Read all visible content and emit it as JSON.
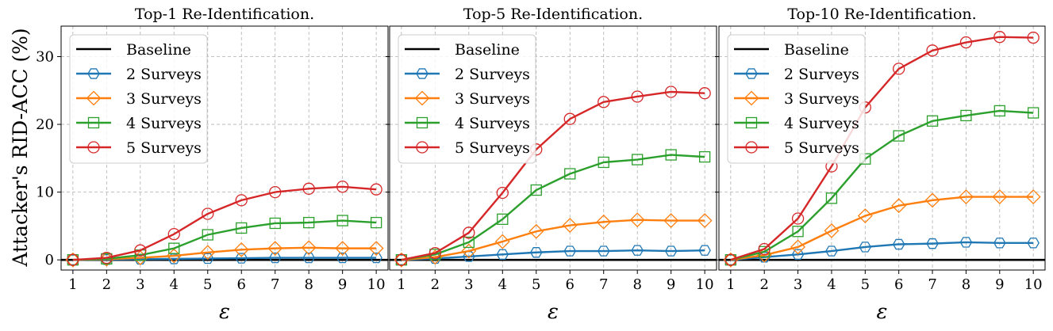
{
  "figure": {
    "ylabel": "Attacker's RID-ACC (%)"
  },
  "legend_position": "upper-left",
  "colors": {
    "Baseline": "#000000",
    "2 Surveys": "#1f77b4",
    "3 Surveys": "#ff7f0e",
    "4 Surveys": "#2ca02c",
    "5 Surveys": "#d62728"
  },
  "chart_data": [
    {
      "type": "line",
      "title": "Top-1 Re-Identification.",
      "xlabel": "ε",
      "ylabel": "Attacker's RID-ACC (%)",
      "x": [
        1,
        2,
        3,
        4,
        5,
        6,
        7,
        8,
        9,
        10
      ],
      "xticks": [
        1,
        2,
        3,
        4,
        5,
        6,
        7,
        8,
        9,
        10
      ],
      "ylim": [
        -1.5,
        34.5
      ],
      "yticks": [
        0,
        10,
        20,
        30
      ],
      "grid": true,
      "series": [
        {
          "name": "Baseline",
          "marker": "none",
          "values": [
            0,
            0,
            0,
            0,
            0,
            0,
            0,
            0,
            0,
            0
          ]
        },
        {
          "name": "2 Surveys",
          "marker": "hexagon",
          "values": [
            0.0,
            0.05,
            0.1,
            0.15,
            0.2,
            0.25,
            0.3,
            0.3,
            0.3,
            0.3
          ]
        },
        {
          "name": "3 Surveys",
          "marker": "diamond",
          "values": [
            0.0,
            0.1,
            0.3,
            0.6,
            1.1,
            1.5,
            1.7,
            1.8,
            1.7,
            1.7
          ]
        },
        {
          "name": "4 Surveys",
          "marker": "square",
          "values": [
            0.0,
            0.15,
            0.7,
            1.7,
            3.7,
            4.7,
            5.4,
            5.5,
            5.8,
            5.5
          ]
        },
        {
          "name": "5 Surveys",
          "marker": "circle",
          "values": [
            0.0,
            0.3,
            1.4,
            3.8,
            6.8,
            8.8,
            10.0,
            10.5,
            10.8,
            10.4
          ]
        }
      ]
    },
    {
      "type": "line",
      "title": "Top-5 Re-Identification.",
      "xlabel": "ε",
      "ylabel": "",
      "x": [
        1,
        2,
        3,
        4,
        5,
        6,
        7,
        8,
        9,
        10
      ],
      "xticks": [
        1,
        2,
        3,
        4,
        5,
        6,
        7,
        8,
        9,
        10
      ],
      "ylim": [
        -1.5,
        34.5
      ],
      "yticks": [
        0,
        10,
        20,
        30
      ],
      "grid": true,
      "series": [
        {
          "name": "Baseline",
          "marker": "none",
          "values": [
            0,
            0,
            0,
            0,
            0,
            0,
            0,
            0,
            0,
            0
          ]
        },
        {
          "name": "2 Surveys",
          "marker": "hexagon",
          "values": [
            0.0,
            0.2,
            0.5,
            0.8,
            1.1,
            1.3,
            1.3,
            1.4,
            1.3,
            1.4
          ]
        },
        {
          "name": "3 Surveys",
          "marker": "diamond",
          "values": [
            0.0,
            0.4,
            1.3,
            2.7,
            4.2,
            5.1,
            5.6,
            5.9,
            5.8,
            5.8
          ]
        },
        {
          "name": "4 Surveys",
          "marker": "square",
          "values": [
            0.0,
            0.8,
            2.6,
            6.0,
            10.3,
            12.7,
            14.4,
            14.8,
            15.5,
            15.2
          ]
        },
        {
          "name": "5 Surveys",
          "marker": "circle",
          "values": [
            0.0,
            1.0,
            4.0,
            9.9,
            16.3,
            20.8,
            23.3,
            24.1,
            24.8,
            24.6
          ]
        }
      ]
    },
    {
      "type": "line",
      "title": "Top-10 Re-Identification.",
      "xlabel": "ε",
      "ylabel": "",
      "x": [
        1,
        2,
        3,
        4,
        5,
        6,
        7,
        8,
        9,
        10
      ],
      "xticks": [
        1,
        2,
        3,
        4,
        5,
        6,
        7,
        8,
        9,
        10
      ],
      "ylim": [
        -1.5,
        34.5
      ],
      "yticks": [
        0,
        10,
        20,
        30
      ],
      "grid": true,
      "series": [
        {
          "name": "Baseline",
          "marker": "none",
          "values": [
            0,
            0,
            0,
            0,
            0,
            0,
            0,
            0,
            0,
            0
          ]
        },
        {
          "name": "2 Surveys",
          "marker": "hexagon",
          "values": [
            0.0,
            0.4,
            0.8,
            1.3,
            1.9,
            2.3,
            2.4,
            2.6,
            2.5,
            2.5
          ]
        },
        {
          "name": "3 Surveys",
          "marker": "diamond",
          "values": [
            0.0,
            0.7,
            1.9,
            4.3,
            6.5,
            8.0,
            8.8,
            9.3,
            9.3,
            9.3
          ]
        },
        {
          "name": "4 Surveys",
          "marker": "square",
          "values": [
            0.0,
            1.2,
            4.2,
            9.1,
            14.9,
            18.3,
            20.5,
            21.3,
            22.0,
            21.7
          ]
        },
        {
          "name": "5 Surveys",
          "marker": "circle",
          "values": [
            0.0,
            1.6,
            6.1,
            13.8,
            22.5,
            28.2,
            30.9,
            32.1,
            32.9,
            32.8
          ]
        }
      ]
    }
  ]
}
